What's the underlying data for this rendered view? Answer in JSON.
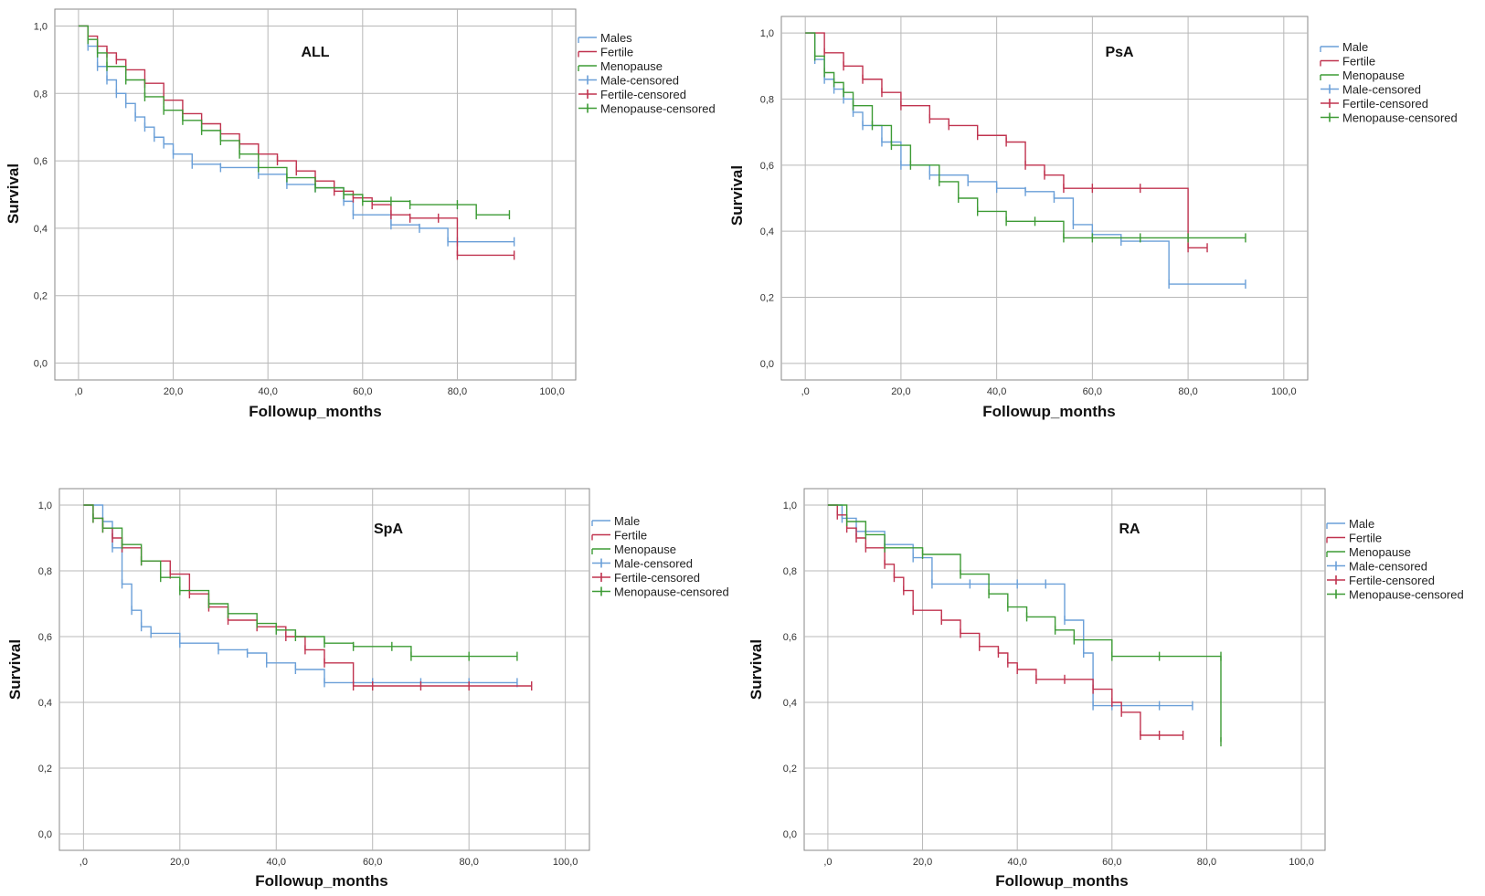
{
  "colors": {
    "male": "#6a9fd8",
    "fertile": "#c0334f",
    "menopause": "#3d9b35",
    "grid": "#b8b8b8",
    "frame": "#888888"
  },
  "chart_data": [
    {
      "type": "line",
      "title": "ALL",
      "xlabel": "Followup_months",
      "ylabel": "Survival",
      "xlim": [
        -5,
        105
      ],
      "ylim": [
        -0.05,
        1.05
      ],
      "xticks": [
        0,
        20,
        40,
        60,
        80,
        100
      ],
      "xtick_labels": [
        ",0",
        "20,0",
        "40,0",
        "60,0",
        "80,0",
        "100,0"
      ],
      "yticks": [
        0,
        0.2,
        0.4,
        0.6,
        0.8,
        1.0
      ],
      "ytick_labels": [
        "0,0",
        "0,2",
        "0,4",
        "0,6",
        "0,8",
        "1,0"
      ],
      "grid": true,
      "legend": [
        "Males",
        "Fertile",
        "Menopause",
        "Male-censored",
        "Fertile-censored",
        "Menopause-censored"
      ],
      "series": [
        {
          "name": "Males",
          "x": [
            0,
            2,
            4,
            6,
            8,
            10,
            12,
            14,
            16,
            18,
            20,
            24,
            30,
            38,
            44,
            50,
            56,
            58,
            66,
            72,
            78,
            80,
            92
          ],
          "y": [
            1.0,
            0.94,
            0.88,
            0.84,
            0.8,
            0.77,
            0.73,
            0.7,
            0.67,
            0.65,
            0.62,
            0.59,
            0.58,
            0.56,
            0.53,
            0.52,
            0.48,
            0.44,
            0.41,
            0.4,
            0.36,
            0.36,
            0.36
          ]
        },
        {
          "name": "Fertile",
          "x": [
            0,
            2,
            4,
            6,
            8,
            10,
            14,
            18,
            22,
            26,
            30,
            34,
            38,
            42,
            46,
            50,
            54,
            58,
            62,
            66,
            70,
            76,
            80,
            92
          ],
          "y": [
            1.0,
            0.97,
            0.94,
            0.92,
            0.9,
            0.87,
            0.83,
            0.78,
            0.74,
            0.71,
            0.68,
            0.65,
            0.62,
            0.6,
            0.57,
            0.54,
            0.51,
            0.49,
            0.47,
            0.44,
            0.43,
            0.43,
            0.32,
            0.32
          ]
        },
        {
          "name": "Menopause",
          "x": [
            0,
            2,
            4,
            6,
            10,
            14,
            18,
            22,
            26,
            30,
            34,
            38,
            44,
            50,
            56,
            60,
            66,
            70,
            80,
            84,
            91
          ],
          "y": [
            1.0,
            0.96,
            0.92,
            0.88,
            0.84,
            0.79,
            0.75,
            0.72,
            0.69,
            0.66,
            0.62,
            0.58,
            0.55,
            0.52,
            0.5,
            0.48,
            0.48,
            0.47,
            0.47,
            0.44,
            0.44
          ]
        }
      ]
    },
    {
      "type": "line",
      "title": "PsA",
      "xlabel": "Followup_months",
      "ylabel": "Survival",
      "xlim": [
        -5,
        105
      ],
      "ylim": [
        -0.05,
        1.05
      ],
      "xticks": [
        0,
        20,
        40,
        60,
        80,
        100
      ],
      "xtick_labels": [
        ",0",
        "20,0",
        "40,0",
        "60,0",
        "80,0",
        "100,0"
      ],
      "yticks": [
        0,
        0.2,
        0.4,
        0.6,
        0.8,
        1.0
      ],
      "ytick_labels": [
        "0,0",
        "0,2",
        "0,4",
        "0,6",
        "0,8",
        "1,0"
      ],
      "grid": true,
      "legend": [
        "Male",
        "Fertile",
        "Menopause",
        "Male-censored",
        "Fertile-censored",
        "Menopause-censored"
      ],
      "series": [
        {
          "name": "Male",
          "x": [
            0,
            2,
            4,
            6,
            8,
            10,
            12,
            16,
            20,
            26,
            34,
            40,
            46,
            52,
            56,
            60,
            66,
            76,
            92
          ],
          "y": [
            1.0,
            0.92,
            0.86,
            0.83,
            0.8,
            0.76,
            0.72,
            0.67,
            0.6,
            0.57,
            0.55,
            0.53,
            0.52,
            0.5,
            0.42,
            0.39,
            0.37,
            0.24,
            0.24
          ]
        },
        {
          "name": "Fertile",
          "x": [
            0,
            4,
            8,
            12,
            16,
            20,
            26,
            30,
            36,
            42,
            46,
            50,
            54,
            60,
            70,
            80,
            84
          ],
          "y": [
            1.0,
            0.94,
            0.9,
            0.86,
            0.82,
            0.78,
            0.74,
            0.72,
            0.69,
            0.67,
            0.6,
            0.57,
            0.53,
            0.53,
            0.53,
            0.35,
            0.35
          ]
        },
        {
          "name": "Menopause",
          "x": [
            0,
            2,
            4,
            6,
            8,
            10,
            14,
            18,
            22,
            28,
            32,
            36,
            42,
            48,
            54,
            60,
            70,
            80,
            92
          ],
          "y": [
            1.0,
            0.93,
            0.88,
            0.85,
            0.82,
            0.78,
            0.72,
            0.66,
            0.6,
            0.55,
            0.5,
            0.46,
            0.43,
            0.43,
            0.38,
            0.38,
            0.38,
            0.38,
            0.38
          ]
        }
      ]
    },
    {
      "type": "line",
      "title": "SpA",
      "xlabel": "Followup_months",
      "ylabel": "Survival",
      "xlim": [
        -5,
        105
      ],
      "ylim": [
        -0.05,
        1.05
      ],
      "xticks": [
        0,
        20,
        40,
        60,
        80,
        100
      ],
      "xtick_labels": [
        ",0",
        "20,0",
        "40,0",
        "60,0",
        "80,0",
        "100,0"
      ],
      "yticks": [
        0,
        0.2,
        0.4,
        0.6,
        0.8,
        1.0
      ],
      "ytick_labels": [
        "0,0",
        "0,2",
        "0,4",
        "0,6",
        "0,8",
        "1,0"
      ],
      "grid": true,
      "legend": [
        "Male",
        "Fertile",
        "Menopause",
        "Male-censored",
        "Fertile-censored",
        "Menopause-censored"
      ],
      "series": [
        {
          "name": "Male",
          "x": [
            0,
            4,
            6,
            8,
            10,
            12,
            14,
            20,
            28,
            34,
            38,
            44,
            50,
            60,
            70,
            80,
            90
          ],
          "y": [
            1.0,
            0.95,
            0.87,
            0.76,
            0.68,
            0.63,
            0.61,
            0.58,
            0.56,
            0.55,
            0.52,
            0.5,
            0.46,
            0.46,
            0.46,
            0.46,
            0.46
          ]
        },
        {
          "name": "Fertile",
          "x": [
            0,
            2,
            4,
            6,
            8,
            12,
            18,
            22,
            26,
            30,
            36,
            42,
            46,
            50,
            56,
            60,
            70,
            80,
            93
          ],
          "y": [
            1.0,
            0.96,
            0.93,
            0.9,
            0.87,
            0.83,
            0.79,
            0.73,
            0.69,
            0.65,
            0.63,
            0.6,
            0.56,
            0.52,
            0.45,
            0.45,
            0.45,
            0.45,
            0.45
          ]
        },
        {
          "name": "Menopause",
          "x": [
            0,
            2,
            4,
            8,
            12,
            16,
            20,
            26,
            30,
            36,
            40,
            44,
            50,
            56,
            64,
            68,
            80,
            90
          ],
          "y": [
            1.0,
            0.96,
            0.93,
            0.88,
            0.83,
            0.78,
            0.74,
            0.7,
            0.67,
            0.64,
            0.62,
            0.6,
            0.58,
            0.57,
            0.57,
            0.54,
            0.54,
            0.54
          ]
        }
      ]
    },
    {
      "type": "line",
      "title": "RA",
      "xlabel": "Followup_months",
      "ylabel": "Survival",
      "xlim": [
        -5,
        105
      ],
      "ylim": [
        -0.05,
        1.05
      ],
      "xticks": [
        0,
        20,
        40,
        60,
        80,
        100
      ],
      "xtick_labels": [
        ",0",
        "20,0",
        "40,0",
        "60,0",
        "80,0",
        "100,0"
      ],
      "yticks": [
        0,
        0.2,
        0.4,
        0.6,
        0.8,
        1.0
      ],
      "ytick_labels": [
        "0,0",
        "0,2",
        "0,4",
        "0,6",
        "0,8",
        "1,0"
      ],
      "grid": true,
      "legend": [
        "Male",
        "Fertile",
        "Menopause",
        "Male-censored",
        "Fertile-censored",
        "Menopause-censored"
      ],
      "series": [
        {
          "name": "Male",
          "x": [
            0,
            3,
            6,
            12,
            18,
            22,
            30,
            40,
            46,
            50,
            54,
            56,
            60,
            70,
            77
          ],
          "y": [
            1.0,
            0.96,
            0.92,
            0.88,
            0.84,
            0.76,
            0.76,
            0.76,
            0.76,
            0.65,
            0.55,
            0.39,
            0.39,
            0.39,
            0.39
          ]
        },
        {
          "name": "Fertile",
          "x": [
            0,
            2,
            4,
            6,
            8,
            12,
            14,
            16,
            18,
            24,
            28,
            32,
            36,
            38,
            40,
            44,
            50,
            56,
            60,
            62,
            66,
            70,
            75
          ],
          "y": [
            1.0,
            0.97,
            0.93,
            0.9,
            0.87,
            0.82,
            0.78,
            0.74,
            0.68,
            0.65,
            0.61,
            0.57,
            0.55,
            0.52,
            0.5,
            0.47,
            0.47,
            0.44,
            0.4,
            0.37,
            0.3,
            0.3,
            0.3
          ]
        },
        {
          "name": "Menopause",
          "x": [
            0,
            4,
            8,
            12,
            20,
            28,
            34,
            38,
            42,
            48,
            52,
            60,
            70,
            83,
            83
          ],
          "y": [
            1.0,
            0.95,
            0.91,
            0.87,
            0.85,
            0.79,
            0.73,
            0.69,
            0.66,
            0.62,
            0.59,
            0.54,
            0.54,
            0.54,
            0.28
          ]
        }
      ]
    }
  ]
}
